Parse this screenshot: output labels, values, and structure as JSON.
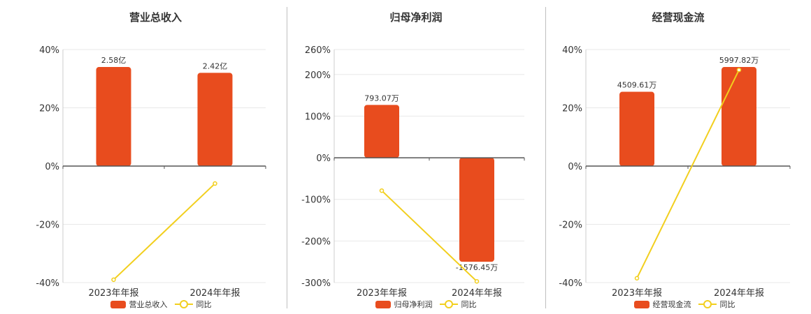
{
  "colors": {
    "bar": "#e84c1e",
    "line": "#f2cf1e",
    "axis": "#555555",
    "grid": "#e8e8e8"
  },
  "chart_data": [
    {
      "type": "bar",
      "title": "营业总收入",
      "categories": [
        "2023年年报",
        "2024年年报"
      ],
      "series": [
        {
          "name": "营业总收入",
          "type": "bar",
          "values": [
            34,
            32
          ],
          "labels": [
            "2.58亿",
            "2.42亿"
          ]
        },
        {
          "name": "同比",
          "type": "line",
          "values": [
            -39,
            -6
          ]
        }
      ],
      "ylim": [
        -40,
        40
      ],
      "yticks": [
        40,
        20,
        0,
        -20,
        -40
      ],
      "yticklabels": [
        "40%",
        "20%",
        "0%",
        "-20%",
        "-40%"
      ]
    },
    {
      "type": "bar",
      "title": "归母净利润",
      "categories": [
        "2023年年报",
        "2024年年报"
      ],
      "series": [
        {
          "name": "归母净利润",
          "type": "bar",
          "values": [
            127,
            -250
          ],
          "labels": [
            "793.07万",
            "-1576.45万"
          ]
        },
        {
          "name": "同比",
          "type": "line",
          "values": [
            -79,
            -297
          ]
        }
      ],
      "ylim": [
        -300,
        260
      ],
      "yticks": [
        260,
        200,
        100,
        0,
        -100,
        -200,
        -300
      ],
      "yticklabels": [
        "260%",
        "200%",
        "100%",
        "0%",
        "-100%",
        "-200%",
        "-300%"
      ]
    },
    {
      "type": "bar",
      "title": "经营现金流",
      "categories": [
        "2023年年报",
        "2024年年报"
      ],
      "series": [
        {
          "name": "经营现金流",
          "type": "bar",
          "values": [
            25.5,
            34
          ],
          "labels": [
            "4509.61万",
            "5997.82万"
          ]
        },
        {
          "name": "同比",
          "type": "line",
          "values": [
            -38.5,
            33
          ]
        }
      ],
      "ylim": [
        -40,
        40
      ],
      "yticks": [
        40,
        20,
        0,
        -20,
        -40
      ],
      "yticklabels": [
        "40%",
        "20%",
        "0%",
        "-20%",
        "-40%"
      ]
    }
  ]
}
